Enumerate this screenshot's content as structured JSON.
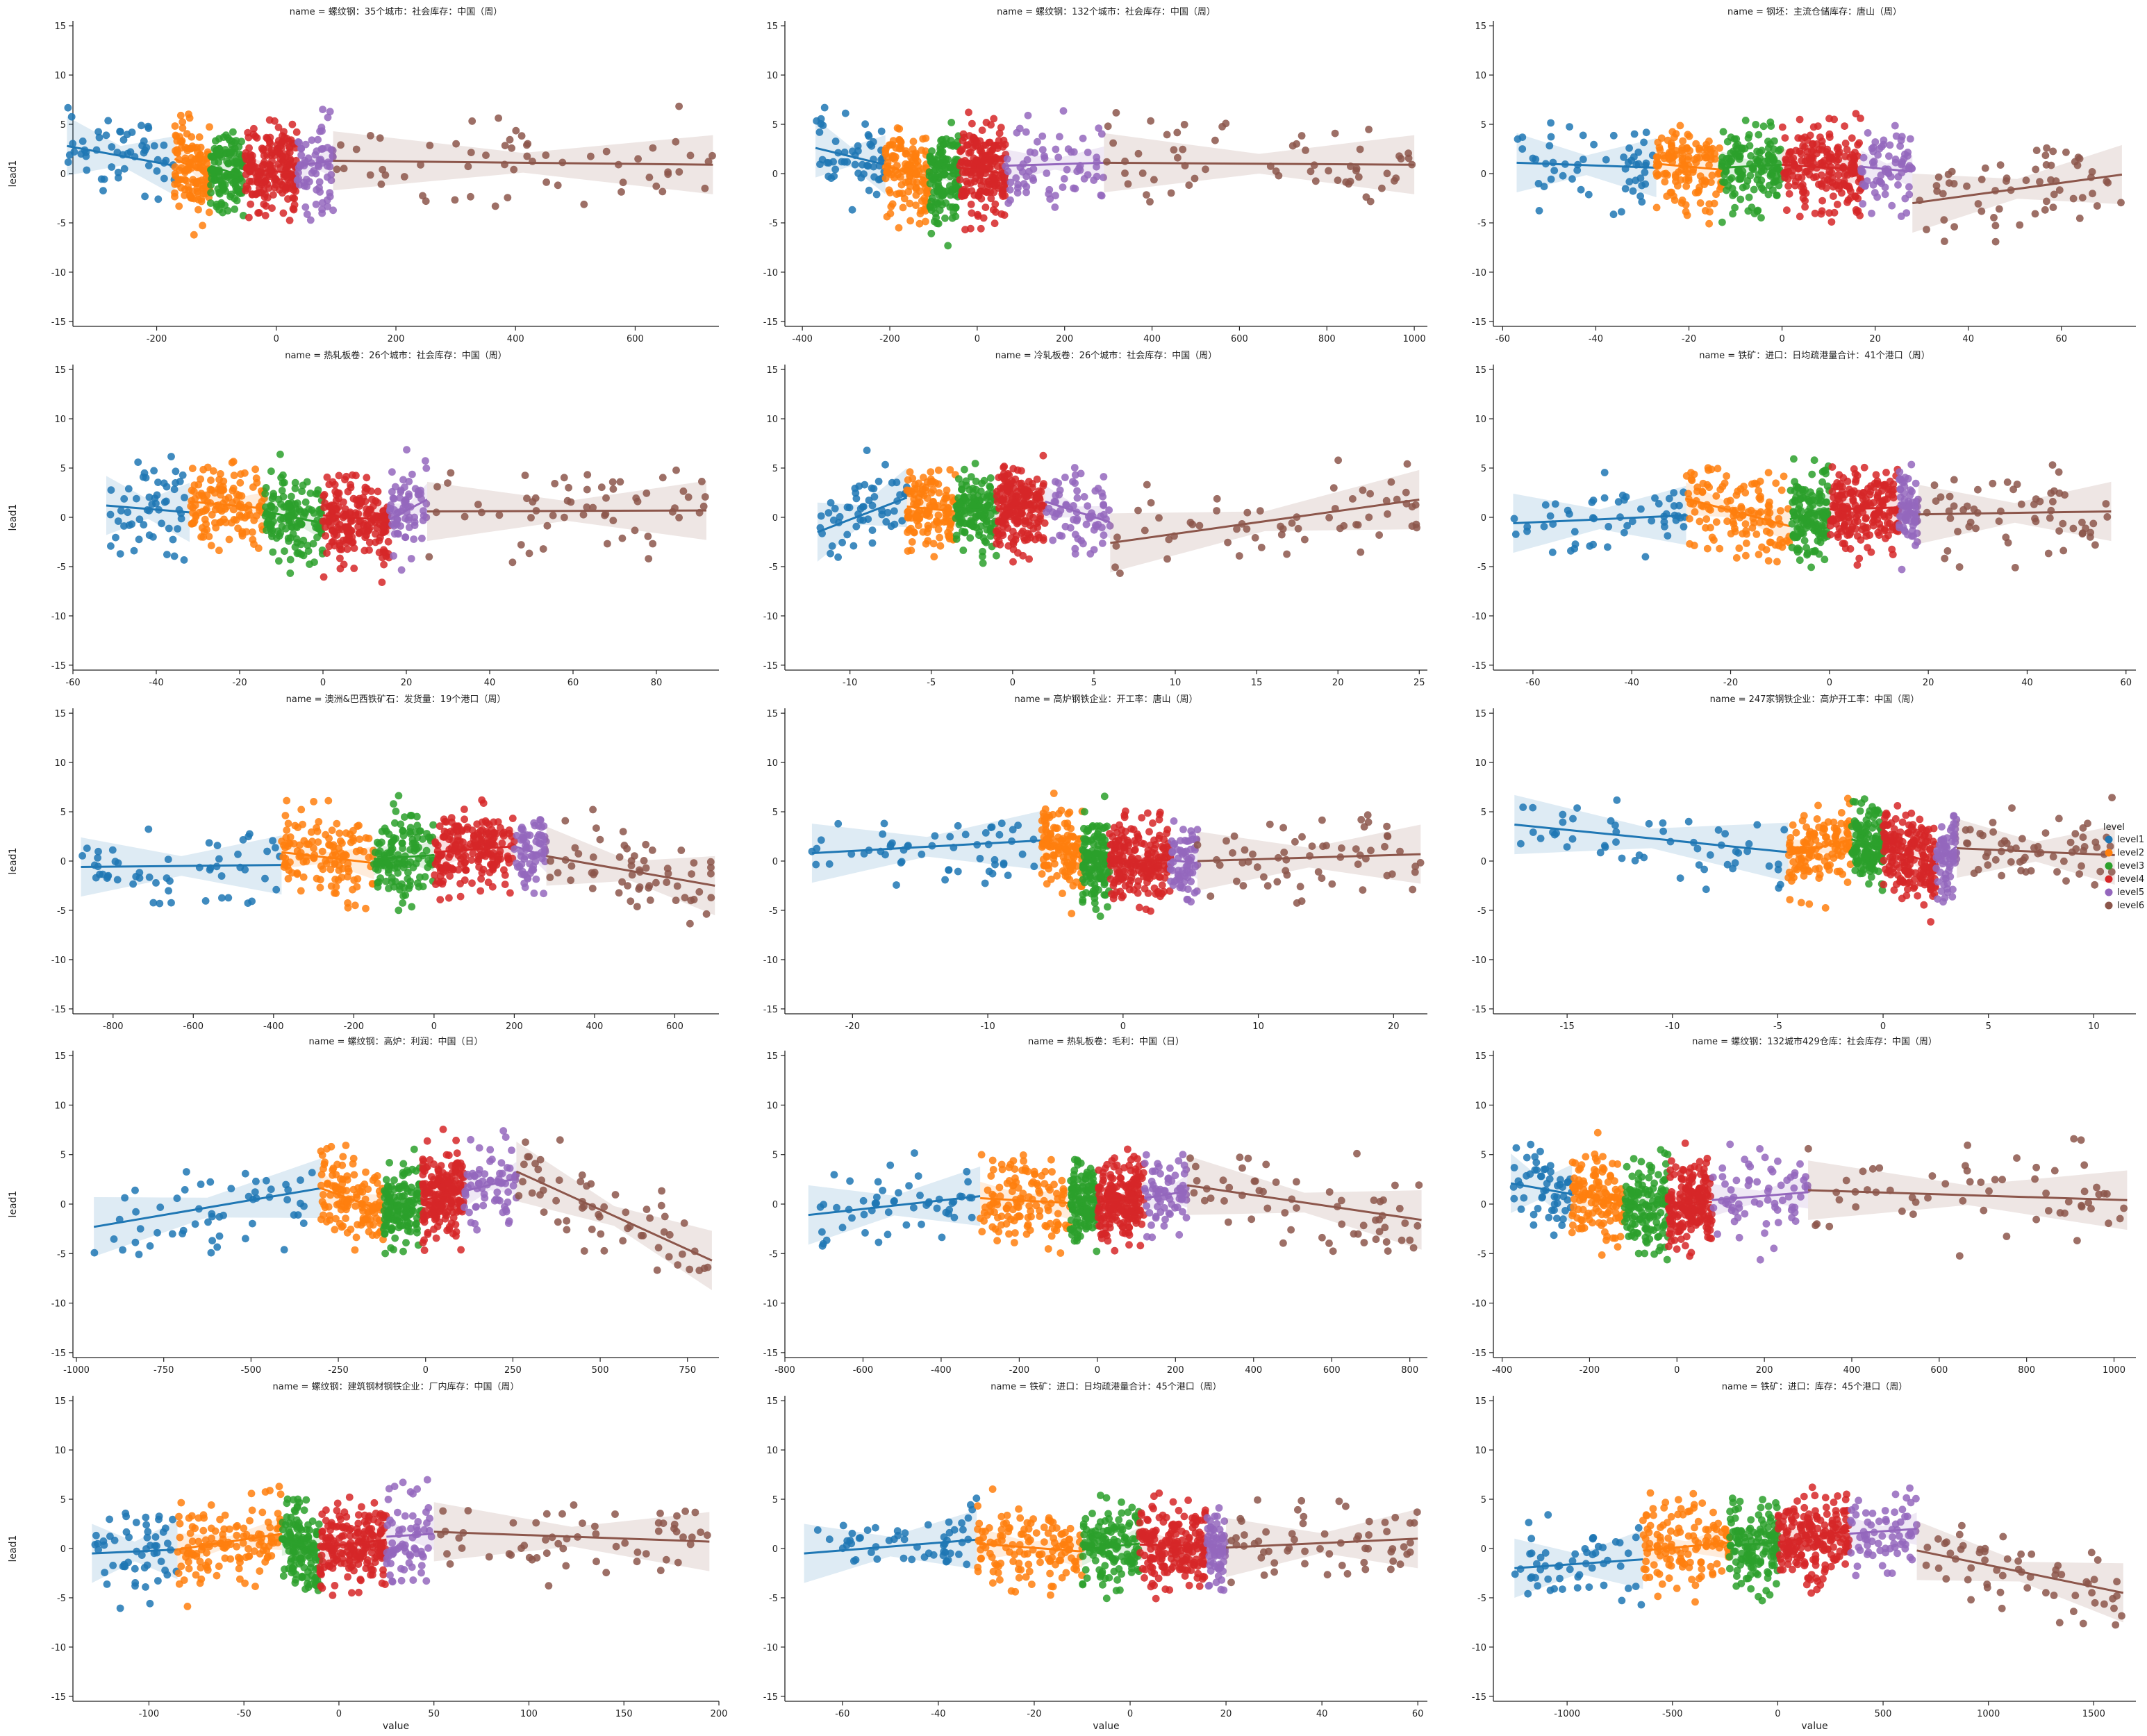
{
  "chart_data": {
    "type": "scatter",
    "facet_title_prefix": "name = ",
    "xlabel": "value",
    "ylabel": "lead1",
    "ylim": [
      -15.5,
      15.5
    ],
    "yticks": [
      -15,
      -10,
      -5,
      0,
      5,
      10,
      15
    ],
    "legend": {
      "title": "level",
      "placement": "right",
      "entries": [
        "level1",
        "level2",
        "level3",
        "level4",
        "level5",
        "level6"
      ]
    },
    "colors": {
      "level1": "#1f77b4",
      "level2": "#ff7f0e",
      "level3": "#2ca02c",
      "level4": "#d62728",
      "level5": "#9467bd",
      "level6": "#8c564b"
    },
    "panels": [
      {
        "name": "螺纹钢：35个城市：社会库存：中国（周）",
        "xlim": [
          -340,
          740
        ],
        "xticks": [
          -200,
          0,
          200,
          400,
          600
        ],
        "cuts": [
          -350,
          -170,
          -110,
          -55,
          35,
          95,
          730
        ],
        "fit": [
          [
            2.8,
            0.8
          ],
          [
            1.5,
            -0.2
          ],
          [
            0.8,
            -0.3
          ],
          [
            0.4,
            0.1
          ],
          [
            0.8,
            1.3
          ],
          [
            1.3,
            0.9
          ]
        ],
        "spread": 3.3
      },
      {
        "name": "螺纹钢：132个城市：社会库存：中国（周）",
        "xlim": [
          -440,
          1030
        ],
        "xticks": [
          -400,
          -200,
          0,
          200,
          400,
          600,
          800,
          1000
        ],
        "cuts": [
          -370,
          -210,
          -110,
          -40,
          65,
          290,
          1000
        ],
        "fit": [
          [
            2.6,
            0.9
          ],
          [
            0.8,
            -0.6
          ],
          [
            -0.2,
            0.1
          ],
          [
            0.6,
            0.0
          ],
          [
            0.8,
            1.1
          ],
          [
            1.1,
            0.9
          ]
        ],
        "spread": 3.4
      },
      {
        "name": "钢坯：主流仓储库存：唐山（周）",
        "xlim": [
          -62,
          76
        ],
        "xticks": [
          -60,
          -40,
          -20,
          0,
          20,
          40,
          60
        ],
        "cuts": [
          -57,
          -27,
          -13,
          0,
          17,
          28,
          73
        ],
        "fit": [
          [
            1.1,
            0.6
          ],
          [
            1.0,
            0.4
          ],
          [
            0.6,
            0.9
          ],
          [
            0.9,
            0.4
          ],
          [
            0.7,
            0.2
          ],
          [
            -3.0,
            -0.1
          ]
        ],
        "spread": 3.2
      },
      {
        "name": "热轧板卷：26个城市：社会库存：中国（周）",
        "xlim": [
          -60,
          95
        ],
        "xticks": [
          -60,
          -40,
          -20,
          0,
          20,
          40,
          60,
          80
        ],
        "cuts": [
          -52,
          -32,
          -14,
          0,
          16,
          25,
          92
        ],
        "fit": [
          [
            1.2,
            0.5
          ],
          [
            1.6,
            0.9
          ],
          [
            0.6,
            -0.6
          ],
          [
            0.2,
            -0.3
          ],
          [
            -0.2,
            1.8
          ],
          [
            0.6,
            0.7
          ]
        ],
        "spread": 3.2
      },
      {
        "name": "冷轧板卷：26个城市：社会库存：中国（周）",
        "xlim": [
          -14,
          25.5
        ],
        "xticks": [
          -10,
          -5,
          0,
          5,
          10,
          15,
          20,
          25
        ],
        "cuts": [
          -12,
          -6.5,
          -3.5,
          -1,
          2,
          6,
          25
        ],
        "fit": [
          [
            -1.5,
            2.0
          ],
          [
            1.1,
            0.6
          ],
          [
            0.8,
            0.7
          ],
          [
            0.8,
            1.2
          ],
          [
            1.6,
            -0.5
          ],
          [
            -2.6,
            1.8
          ]
        ],
        "spread": 3.0
      },
      {
        "name": "铁矿：进口：日均疏港量合计：41个港口（周）",
        "xlim": [
          -68,
          62
        ],
        "xticks": [
          -60,
          -40,
          -20,
          0,
          20,
          40,
          60
        ],
        "cuts": [
          -64,
          -29,
          -8,
          0,
          14,
          18,
          57
        ],
        "fit": [
          [
            -0.6,
            0.2
          ],
          [
            1.9,
            -0.9
          ],
          [
            -0.2,
            0.9
          ],
          [
            0.8,
            1.0
          ],
          [
            1.5,
            0.3
          ],
          [
            0.3,
            0.6
          ]
        ],
        "spread": 3.1
      },
      {
        "name": "澳洲&巴西铁矿石：发货量：19个港口（周）",
        "xlim": [
          -900,
          710
        ],
        "xticks": [
          -800,
          -600,
          -400,
          -200,
          0,
          200,
          400,
          600
        ],
        "cuts": [
          -880,
          -380,
          -150,
          0,
          200,
          280,
          700
        ],
        "fit": [
          [
            -0.6,
            -0.4
          ],
          [
            0.9,
            -0.2
          ],
          [
            0.2,
            0.6
          ],
          [
            0.9,
            1.5
          ],
          [
            1.5,
            0.5
          ],
          [
            0.5,
            -2.5
          ]
        ],
        "spread": 3.1
      },
      {
        "name": "高炉钢铁企业：开工率：唐山（周）",
        "xlim": [
          -25,
          22.5
        ],
        "xticks": [
          -20,
          -10,
          0,
          10,
          20
        ],
        "cuts": [
          -23,
          -6,
          -3,
          -1,
          3.5,
          5.5,
          22
        ],
        "fit": [
          [
            0.8,
            2.1
          ],
          [
            2.1,
            0.2
          ],
          [
            0.0,
            -0.4
          ],
          [
            0.0,
            0.1
          ],
          [
            0.1,
            -0.2
          ],
          [
            0.0,
            0.7
          ]
        ],
        "spread": 3.0
      },
      {
        "name": "247家钢铁企业：高炉开工率：中国（周）",
        "xlim": [
          -18.5,
          12
        ],
        "xticks": [
          -15,
          -10,
          -5,
          0,
          5,
          10
        ],
        "cuts": [
          -17.5,
          -4.5,
          -1.5,
          0,
          2.5,
          3.5,
          11
        ],
        "fit": [
          [
            3.7,
            0.9
          ],
          [
            0.6,
            2.2
          ],
          [
            2.2,
            1.5
          ],
          [
            1.2,
            -0.2
          ],
          [
            -0.2,
            1.5
          ],
          [
            1.3,
            0.6
          ]
        ],
        "spread": 3.0
      },
      {
        "name": "螺纹钢：高炉：利润：中国（日）",
        "xlim": [
          -1010,
          840
        ],
        "xticks": [
          -1000,
          -750,
          -500,
          -250,
          0,
          250,
          500,
          750
        ],
        "cuts": [
          -950,
          -300,
          -120,
          -10,
          110,
          260,
          820
        ],
        "fit": [
          [
            -2.3,
            1.6
          ],
          [
            1.6,
            -0.7
          ],
          [
            -0.7,
            0.4
          ],
          [
            0.4,
            1.3
          ],
          [
            1.3,
            2.6
          ],
          [
            3.3,
            -5.7
          ]
        ],
        "spread": 3.1
      },
      {
        "name": "热轧板卷：毛利：中国（日）",
        "xlim": [
          -800,
          845
        ],
        "xticks": [
          -800,
          -600,
          -400,
          -200,
          0,
          200,
          400,
          600,
          800
        ],
        "cuts": [
          -740,
          -300,
          -70,
          0,
          120,
          230,
          830
        ],
        "fit": [
          [
            -1.1,
            0.8
          ],
          [
            0.6,
            0.1
          ],
          [
            0.0,
            0.7
          ],
          [
            0.2,
            0.8
          ],
          [
            0.6,
            1.3
          ],
          [
            1.9,
            -1.6
          ]
        ],
        "spread": 3.1
      },
      {
        "name": "螺纹钢：132城市429仓库：社会库存：中国（周）",
        "xlim": [
          -420,
          1050
        ],
        "xticks": [
          -400,
          -200,
          0,
          200,
          400,
          600,
          800,
          1000
        ],
        "cuts": [
          -380,
          -240,
          -120,
          -20,
          80,
          300,
          1030
        ],
        "fit": [
          [
            2.1,
            1.0
          ],
          [
            1.1,
            -0.2
          ],
          [
            -0.3,
            0.3
          ],
          [
            0.1,
            0.2
          ],
          [
            0.4,
            1.2
          ],
          [
            1.4,
            0.4
          ]
        ],
        "spread": 3.3
      },
      {
        "name": "螺纹钢：建筑钢材钢铁企业：厂内库存：中国（周）",
        "xlim": [
          -140,
          200
        ],
        "xticks": [
          -100,
          -50,
          0,
          50,
          100,
          150,
          200
        ],
        "cuts": [
          -130,
          -85,
          -30,
          -10,
          25,
          50,
          195
        ],
        "fit": [
          [
            -0.5,
            -0.1
          ],
          [
            -0.1,
            1.5
          ],
          [
            0.9,
            -0.2
          ],
          [
            0.1,
            0.9
          ],
          [
            1.2,
            1.5
          ],
          [
            1.7,
            0.7
          ]
        ],
        "spread": 3.2
      },
      {
        "name": "铁矿：进口：日均疏港量合计：45个港口（周）",
        "xlim": [
          -72,
          62
        ],
        "xticks": [
          -60,
          -40,
          -20,
          0,
          20,
          40,
          60
        ],
        "cuts": [
          -68,
          -32,
          -10,
          2,
          16,
          20,
          60
        ],
        "fit": [
          [
            -0.5,
            0.9
          ],
          [
            0.5,
            -0.3
          ],
          [
            -0.1,
            0.5
          ],
          [
            0.4,
            0.3
          ],
          [
            0.3,
            0.2
          ],
          [
            0.1,
            1.0
          ]
        ],
        "spread": 3.1
      },
      {
        "name": "铁矿：进口：库存：45个港口（周）",
        "xlim": [
          -1350,
          1700
        ],
        "xticks": [
          -1000,
          -500,
          0,
          500,
          1000,
          1500
        ],
        "cuts": [
          -1250,
          -640,
          -230,
          0,
          340,
          660,
          1640
        ],
        "fit": [
          [
            -2.0,
            -1.1
          ],
          [
            -0.2,
            0.6
          ],
          [
            0.3,
            0.6
          ],
          [
            0.6,
            1.8
          ],
          [
            1.5,
            2.0
          ],
          [
            -0.2,
            -4.5
          ]
        ],
        "spread": 3.2
      }
    ]
  }
}
